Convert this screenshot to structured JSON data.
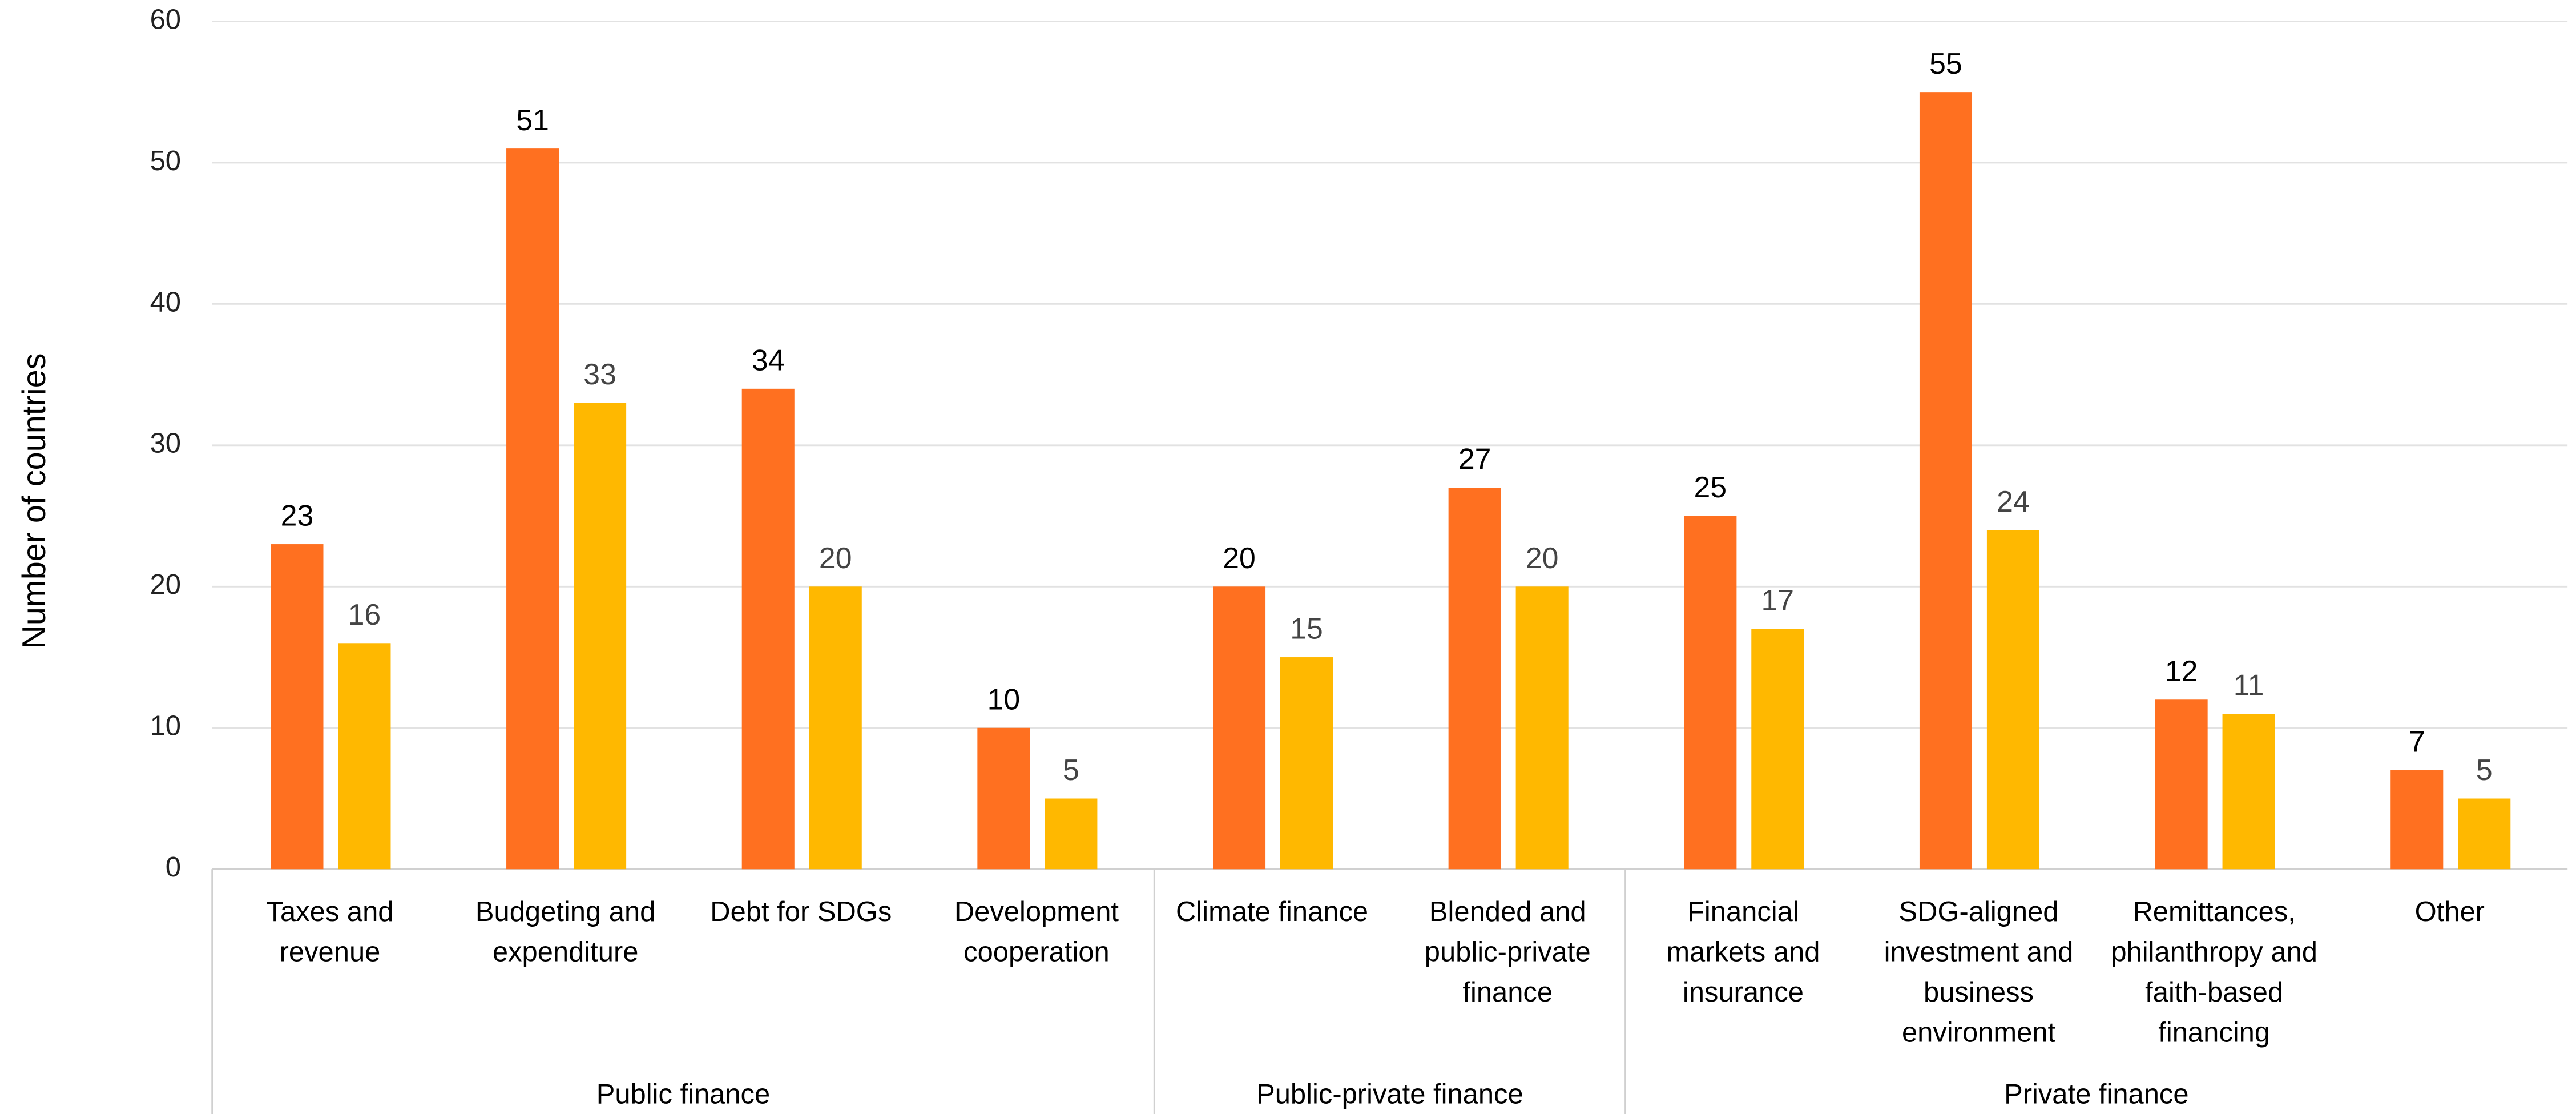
{
  "chart_data": {
    "type": "bar",
    "y_label": "Number of countries",
    "groups": [
      {
        "name": "Public finance",
        "categories": [
          "Taxes and revenue",
          "Budgeting and expenditure",
          "Debt for SDGs",
          "Development cooperation"
        ]
      },
      {
        "name": "Public-private finance",
        "categories": [
          "Climate finance",
          "Blended and public-private finance"
        ]
      },
      {
        "name": "Private finance",
        "categories": [
          "Financial markets and insurance",
          "SDG-aligned investment and business environment",
          "Remittances, philanthropy and faith-based financing",
          "Other"
        ]
      }
    ],
    "series": [
      {
        "color": "#ff7020",
        "label_color": "#000000",
        "values": [
          23,
          51,
          34,
          10,
          20,
          27,
          25,
          55,
          12,
          7
        ]
      },
      {
        "color": "#ffb800",
        "label_color": "#444444",
        "values": [
          16,
          33,
          20,
          5,
          15,
          20,
          17,
          24,
          11,
          5
        ]
      }
    ],
    "ylim": [
      0,
      60
    ],
    "yticks": [
      0,
      10,
      20,
      30,
      40,
      50,
      60
    ],
    "grid": true
  }
}
